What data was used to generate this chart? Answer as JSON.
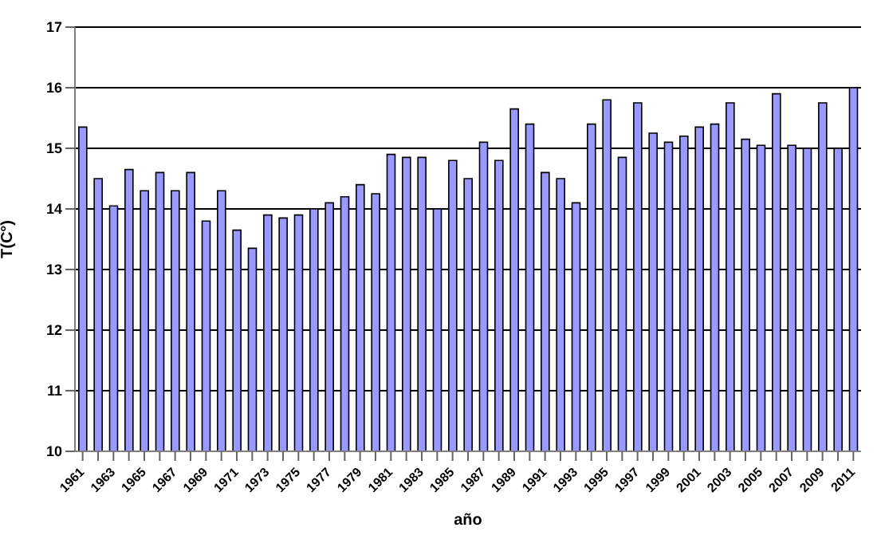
{
  "chart_data": {
    "type": "bar",
    "xlabel": "año",
    "ylabel": "T(C°)",
    "categories": [
      "1961",
      null,
      "1963",
      null,
      "1965",
      null,
      "1967",
      null,
      "1969",
      null,
      "1971",
      null,
      "1973",
      null,
      "1975",
      null,
      "1977",
      null,
      "1979",
      null,
      "1981",
      null,
      "1983",
      null,
      "1985",
      null,
      "1987",
      null,
      "1989",
      null,
      "1991",
      null,
      "1993",
      null,
      "1995",
      null,
      "1997",
      null,
      "1999",
      null,
      "2001",
      null,
      "2003",
      null,
      "2005",
      null,
      "2007",
      null,
      "2009",
      null,
      "2011"
    ],
    "values": [
      15.35,
      14.5,
      14.05,
      14.65,
      14.3,
      14.6,
      14.3,
      14.6,
      13.8,
      14.3,
      13.65,
      13.35,
      13.9,
      13.85,
      13.9,
      14.0,
      14.1,
      14.2,
      14.4,
      14.25,
      14.9,
      14.85,
      14.85,
      14.0,
      14.8,
      14.5,
      15.1,
      14.8,
      15.65,
      15.4,
      14.6,
      14.5,
      14.1,
      15.4,
      15.8,
      14.85,
      15.75,
      15.25,
      15.1,
      15.2,
      15.35,
      15.4,
      15.75,
      15.15,
      15.05,
      15.9,
      15.05,
      15.0,
      15.75,
      15.0,
      16.0
    ],
    "color": "#9999ff",
    "ylim": [
      10,
      17
    ],
    "yticks": [
      10,
      11,
      12,
      13,
      14,
      15,
      16,
      17
    ],
    "grid": "y"
  }
}
